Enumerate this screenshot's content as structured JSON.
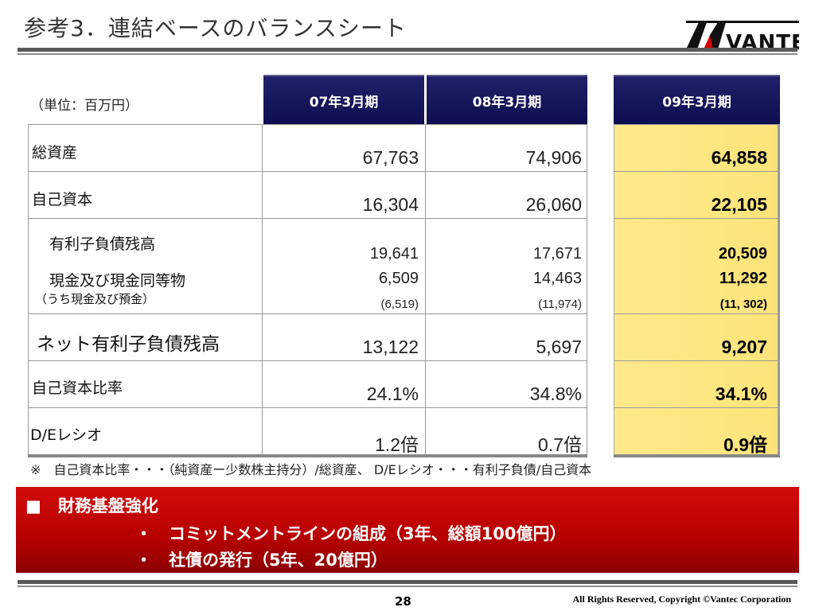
{
  "header": {
    "title": "参考3．連結ベースのバランスシート",
    "logo_text": "VANTEC"
  },
  "table": {
    "unit": "（単位：百万円）",
    "columns": [
      "07年3月期",
      "08年3月期",
      "09年3月期"
    ],
    "rows": [
      {
        "label": "総資産",
        "values": [
          "67,763",
          "74,906",
          "64,858"
        ]
      },
      {
        "label": "自己資本",
        "values": [
          "16,304",
          "26,060",
          "22,105"
        ]
      },
      {
        "label": "有利子負債残高",
        "values": [
          "19,641",
          "17,671",
          "20,509"
        ]
      },
      {
        "label": "現金及び現金同等物",
        "values": [
          "6,509",
          "14,463",
          "11,292"
        ],
        "sublabel": "（うち現金及び預金）",
        "subvalues": [
          "(6,519)",
          "(11,974)",
          "(11, 302)"
        ]
      },
      {
        "label": "ネット有利子負債残高",
        "values": [
          "13,122",
          "5,697",
          "9,207"
        ]
      },
      {
        "label": "自己資本比率",
        "values": [
          "24.1%",
          "34.8%",
          "34.1%"
        ]
      },
      {
        "label": "D/Eレシオ",
        "values": [
          "1.2倍",
          "0.7倍",
          "0.9倍"
        ]
      }
    ],
    "note": "※　自己資本比率・・・（純資産ー少数株主持分）/総資産、 D/Eレシオ・・・有利子負債/自己資本"
  },
  "highlight": {
    "heading": "■　財務基盤強化",
    "items": [
      "・　コミットメントラインの組成（3年、総額100億円）",
      "・　社債の発行（5年、20億円）"
    ]
  },
  "footer": {
    "page_number": "28",
    "copyright": "All Rights Reserved, Copyright ©Vantec Corporation"
  },
  "colors": {
    "header_navy": "#15155c",
    "highlight_yellow": "#fde47a",
    "banner_red": "#c00000"
  }
}
